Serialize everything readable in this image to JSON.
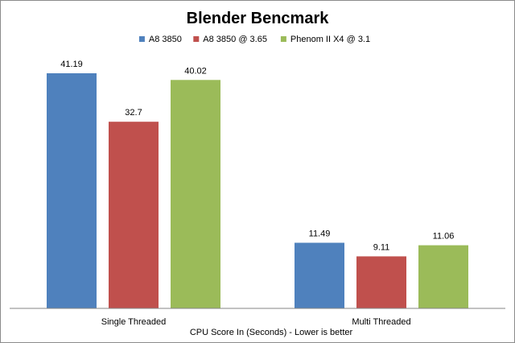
{
  "chart_data": {
    "type": "bar",
    "title": "Blender Bencmark",
    "xlabel": "CPU Score In (Seconds)  - Lower is better",
    "ylabel": "",
    "categories": [
      "Single Threaded",
      "Multi Threaded"
    ],
    "series": [
      {
        "name": "A8 3850",
        "color": "#4f81bd",
        "values": [
          41.19,
          11.49
        ]
      },
      {
        "name": "A8 3850 @ 3.65",
        "color": "#c0504d",
        "values": [
          32.7,
          9.11
        ]
      },
      {
        "name": "Phenom II X4 @ 3.1",
        "color": "#9bbb59",
        "values": [
          40.02,
          11.06
        ]
      }
    ],
    "data_labels": [
      [
        "41.19",
        "11.49"
      ],
      [
        "32.7",
        "9.11"
      ],
      [
        "40.02",
        "11.06"
      ]
    ],
    "ylim": [
      0,
      45
    ],
    "grid": false,
    "legend": "top"
  }
}
